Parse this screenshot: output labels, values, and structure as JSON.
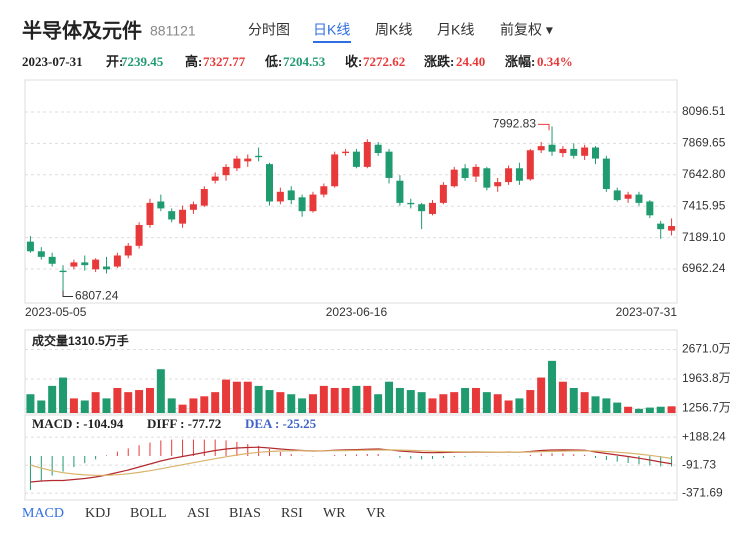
{
  "header": {
    "title": "半导体及元件",
    "code": "881121",
    "tabs": [
      "分时图",
      "日K线",
      "周K线",
      "月K线",
      "前复权 ▾"
    ],
    "active_tab": 1,
    "info": {
      "labels": [
        "开:",
        "高:",
        "低:",
        "收:",
        "涨跌:",
        "涨幅:"
      ],
      "change": "24.40",
      "change_pct": "0.34%"
    }
  },
  "bottom_tabs": {
    "items": [
      "MACD",
      "KDJ",
      "BOLL",
      "ASI",
      "BIAS",
      "RSI",
      "WR",
      "VR"
    ],
    "active": 0
  },
  "chart_data": [
    {
      "type": "candlestick",
      "categories": [
        "2023-05-05",
        null,
        null,
        null,
        null,
        null,
        null,
        null,
        null,
        null,
        null,
        null,
        null,
        null,
        null,
        null,
        null,
        null,
        null,
        null,
        null,
        null,
        null,
        null,
        null,
        null,
        null,
        null,
        null,
        null,
        "2023-06-16",
        null,
        null,
        null,
        null,
        null,
        null,
        null,
        null,
        null,
        null,
        null,
        null,
        null,
        null,
        null,
        null,
        null,
        null,
        null,
        null,
        null,
        null,
        null,
        null,
        null,
        null,
        null,
        null,
        "2023-07-31"
      ],
      "open": [
        7160,
        7090,
        7050,
        6950,
        6980,
        7010,
        6960,
        6980,
        6980,
        7060,
        7130,
        7280,
        7450,
        7380,
        7290,
        7390,
        7420,
        7600,
        7640,
        7690,
        7740,
        7780,
        7720,
        7450,
        7530,
        7480,
        7380,
        7500,
        7560,
        7800,
        7810,
        7700,
        7860,
        7810,
        7600,
        7440,
        7430,
        7360,
        7440,
        7560,
        7690,
        7630,
        7690,
        7560,
        7590,
        7690,
        7610,
        7820,
        7860,
        7800,
        7830,
        7780,
        7840,
        7760,
        7530,
        7470,
        7500,
        7450,
        7290,
        7239.45
      ],
      "high": [
        7200,
        7120,
        7080,
        6990,
        7030,
        7060,
        7040,
        7050,
        7080,
        7150,
        7300,
        7470,
        7500,
        7400,
        7420,
        7450,
        7560,
        7660,
        7720,
        7780,
        7790,
        7840,
        7730,
        7550,
        7560,
        7500,
        7520,
        7580,
        7810,
        7830,
        7830,
        7900,
        7880,
        7830,
        7640,
        7470,
        7440,
        7460,
        7590,
        7700,
        7720,
        7720,
        7700,
        7620,
        7710,
        7730,
        7830,
        7880,
        7992.83,
        7850,
        7870,
        7860,
        7850,
        7780,
        7550,
        7520,
        7520,
        7460,
        7310,
        7327.77
      ],
      "low": [
        7080,
        7030,
        6980,
        6807.24,
        6960,
        6950,
        6940,
        6930,
        6970,
        7040,
        7110,
        7260,
        7380,
        7300,
        7260,
        7360,
        7410,
        7580,
        7600,
        7670,
        7700,
        7740,
        7420,
        7430,
        7430,
        7340,
        7370,
        7480,
        7550,
        7780,
        7690,
        7690,
        7780,
        7580,
        7420,
        7400,
        7250,
        7350,
        7430,
        7550,
        7600,
        7590,
        7530,
        7520,
        7570,
        7570,
        7600,
        7800,
        7780,
        7770,
        7760,
        7750,
        7720,
        7520,
        7450,
        7440,
        7420,
        7330,
        7180,
        7204.53
      ],
      "close": [
        7090,
        7050,
        7000,
        6940,
        7010,
        6990,
        7030,
        6960,
        7060,
        7130,
        7280,
        7440,
        7400,
        7320,
        7390,
        7430,
        7540,
        7630,
        7700,
        7760,
        7760,
        7770,
        7450,
        7520,
        7460,
        7380,
        7500,
        7560,
        7790,
        7810,
        7700,
        7880,
        7800,
        7620,
        7440,
        7430,
        7380,
        7440,
        7570,
        7680,
        7620,
        7700,
        7550,
        7590,
        7690,
        7600,
        7820,
        7850,
        7810,
        7830,
        7780,
        7840,
        7760,
        7540,
        7460,
        7500,
        7440,
        7350,
        7250,
        7272.62
      ],
      "up_color": "#e8393a",
      "down_color": "#1f9b6f",
      "ylim": [
        6716.6,
        8327.7
      ],
      "yticks": [
        8096.51,
        7869.65,
        7642.8,
        7415.95,
        7189.1,
        6962.24
      ],
      "ytick_labels": [
        "8096.51",
        "7869.65",
        "7642.80",
        "7415.95",
        "7189.10",
        "6962.24"
      ],
      "grid": true
    },
    {
      "type": "bar",
      "title": "成交量1310.5万手",
      "values": [
        1600,
        1450,
        1800,
        2000,
        1500,
        1450,
        1650,
        1500,
        1750,
        1650,
        1700,
        1750,
        2200,
        1500,
        1350,
        1500,
        1550,
        1650,
        1950,
        1900,
        1900,
        1800,
        1700,
        1650,
        1600,
        1500,
        1600,
        1800,
        1750,
        1750,
        1800,
        1800,
        1600,
        1900,
        1750,
        1700,
        1650,
        1500,
        1600,
        1650,
        1750,
        1750,
        1650,
        1600,
        1450,
        1500,
        1700,
        2000,
        2400,
        1900,
        1750,
        1650,
        1550,
        1500,
        1400,
        1300,
        1250,
        1280,
        1300,
        1310.5
      ],
      "ylim": [
        1150,
        2900
      ],
      "yticks": [
        {
          "value": 2671.0,
          "label": "2671.0万"
        },
        {
          "value": 1963.8,
          "label": "1963.8万"
        },
        {
          "value": 1256.7,
          "label": "1256.7万"
        }
      ],
      "grid": true
    },
    {
      "type": "macd",
      "series": [
        {
          "name": "MACD : -104.94",
          "up_color": "#e8393a",
          "down_color": "#1f9b6f",
          "values": [
            -340,
            -256,
            -196,
            -156,
            -110,
            -72,
            -34,
            6,
            44,
            76,
            108,
            134,
            156,
            164,
            164,
            164,
            164,
            164,
            156,
            140,
            120,
            102,
            70,
            40,
            20,
            4,
            -4,
            0,
            10,
            16,
            16,
            20,
            20,
            2,
            -18,
            -28,
            -34,
            -30,
            -20,
            -10,
            -8,
            -2,
            -4,
            -2,
            2,
            -2,
            10,
            24,
            28,
            26,
            18,
            12,
            -20,
            -40,
            -56,
            -70,
            -82,
            -94,
            -104,
            -104.94
          ]
        },
        {
          "name": "DIFF : -77.72",
          "color": "#b32a2e",
          "values": [
            -260,
            -250,
            -245,
            -245,
            -235,
            -225,
            -210,
            -190,
            -165,
            -140,
            -110,
            -80,
            -50,
            -25,
            -5,
            15,
            35,
            55,
            70,
            80,
            85,
            88,
            80,
            70,
            62,
            55,
            50,
            52,
            58,
            62,
            64,
            68,
            70,
            62,
            50,
            42,
            35,
            33,
            35,
            38,
            38,
            40,
            38,
            38,
            40,
            38,
            45,
            55,
            60,
            62,
            60,
            58,
            40,
            25,
            10,
            -5,
            -22,
            -40,
            -60,
            -77.72
          ]
        },
        {
          "name": "DEA : -25.25",
          "color": "#d9b36b",
          "values": [
            -90,
            -122,
            -147,
            -167,
            -180,
            -189,
            -193,
            -193,
            -187,
            -178,
            -164,
            -147,
            -128,
            -107,
            -87,
            -67,
            -47,
            -27,
            -8,
            10,
            25,
            37,
            45,
            50,
            52,
            53,
            52,
            52,
            53,
            54,
            56,
            58,
            60,
            61,
            59,
            56,
            52,
            48,
            45,
            43,
            42,
            41,
            40,
            39,
            39,
            39,
            40,
            43,
            46,
            49,
            51,
            52,
            50,
            45,
            38,
            30,
            19,
            7,
            -8,
            -25.25
          ]
        }
      ],
      "ylim": [
        -440,
        410
      ],
      "yticks": [
        {
          "value": 188.24,
          "label": "+188.24"
        },
        -91.73,
        -371.69
      ],
      "grid": true
    }
  ]
}
